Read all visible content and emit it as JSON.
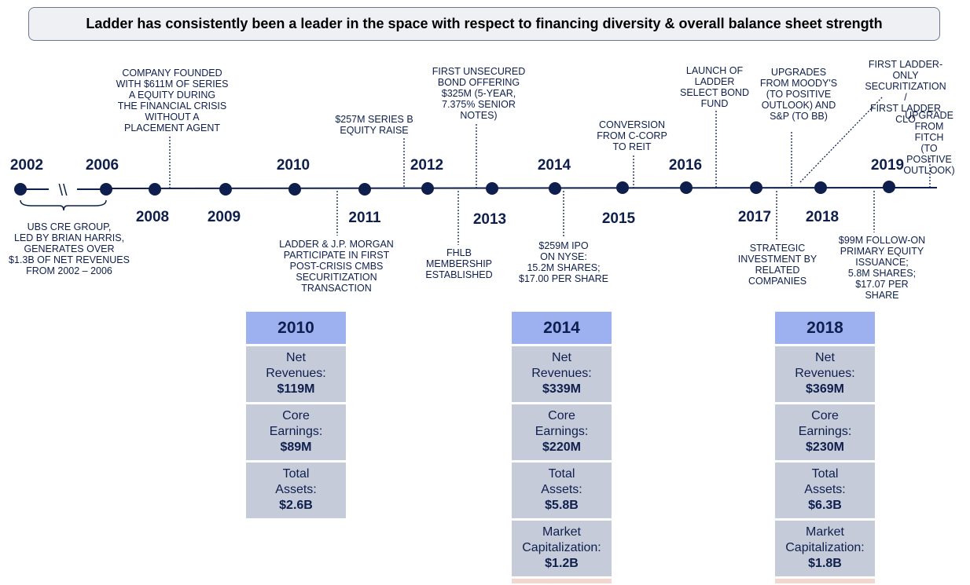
{
  "header": {
    "title": "Ladder has consistently been a leader in the space with respect to financing diversity & overall balance sheet strength"
  },
  "colors": {
    "navy": "#0e1f4d",
    "card_header": "#9db0f0",
    "card_cell": "#c6cbda",
    "banner_bg": "#eef0f4"
  },
  "timeline": {
    "break_symbol": "\\\\",
    "years": [
      "2002",
      "2006",
      "2008",
      "2009",
      "2010",
      "2011",
      "2012",
      "2013",
      "2014",
      "2015",
      "2016",
      "2017",
      "2018",
      "2019"
    ],
    "events": [
      "UBS CRE GROUP,\nLED BY BRIAN HARRIS,\nGENERATES OVER\n$1.3B OF NET REVENUES\nFROM 2002 – 2006",
      "COMPANY FOUNDED\nWITH $611M OF SERIES\nA EQUITY DURING\nTHE FINANCIAL CRISIS\nWITHOUT A\nPLACEMENT AGENT",
      "LADDER & J.P. MORGAN\nPARTICIPATE IN FIRST\nPOST-CRISIS CMBS\nSECURITIZATION\nTRANSACTION",
      "$257M SERIES B\nEQUITY RAISE",
      "FIRST UNSECURED\nBOND OFFERING\n$325M (5-YEAR,\n7.375% SENIOR\nNOTES)",
      "FHLB\nMEMBERSHIP\nESTABLISHED",
      "$259M IPO\nON NYSE:\n15.2M SHARES;\n$17.00 PER SHARE",
      "CONVERSION\nFROM C-CORP\nTO REIT",
      "LAUNCH OF\nLADDER\nSELECT BOND\nFUND",
      "STRATEGIC\nINVESTMENT BY\nRELATED\nCOMPANIES",
      "UPGRADES\nFROM MOODY'S\n(TO POSITIVE\nOUTLOOK) AND\nS&P (TO BB)",
      "FIRST LADDER-ONLY\nSECURITIZATION /\nFIRST LADDER CLO",
      "$99M FOLLOW-ON\nPRIMARY EQUITY\nISSUANCE;\n5.8M SHARES;\n$17.07 PER SHARE",
      "UPGRADE\nFROM FITCH\n(TO POSITIVE\nOUTLOOK)"
    ]
  },
  "cards": [
    {
      "year": "2010",
      "rows": [
        {
          "label": "Net\nRevenues:",
          "value": "$119M"
        },
        {
          "label": "Core\nEarnings:",
          "value": "$89M"
        },
        {
          "label": "Total\nAssets:",
          "value": "$2.6B"
        }
      ]
    },
    {
      "year": "2014",
      "rows": [
        {
          "label": "Net\nRevenues:",
          "value": "$339M"
        },
        {
          "label": "Core\nEarnings:",
          "value": "$220M"
        },
        {
          "label": "Total\nAssets:",
          "value": "$5.8B"
        },
        {
          "label": "Market\nCapitalization:",
          "value": "$1.2B"
        }
      ]
    },
    {
      "year": "2018",
      "rows": [
        {
          "label": "Net\nRevenues:",
          "value": "$369M"
        },
        {
          "label": "Core\nEarnings:",
          "value": "$230M"
        },
        {
          "label": "Total\nAssets:",
          "value": "$6.3B"
        },
        {
          "label": "Market\nCapitalization:",
          "value": "$1.8B"
        }
      ]
    }
  ]
}
